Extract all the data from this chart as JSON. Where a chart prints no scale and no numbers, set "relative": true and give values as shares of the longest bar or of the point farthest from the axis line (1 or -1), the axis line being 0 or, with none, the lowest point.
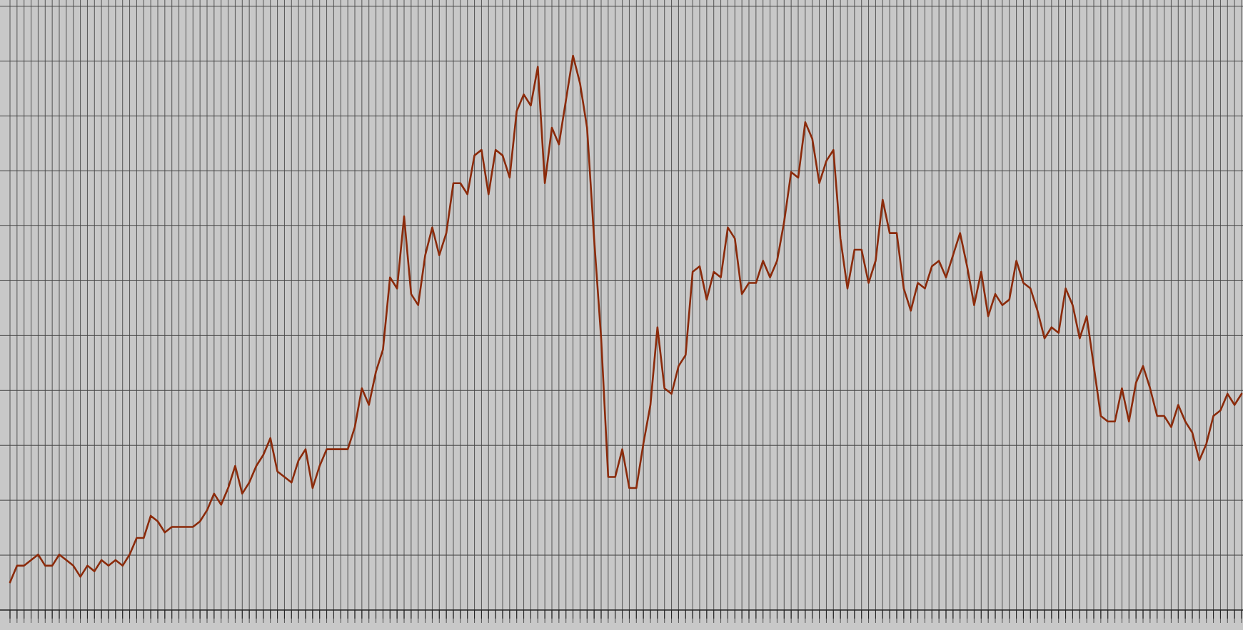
{
  "chart_data": {
    "type": "line",
    "relative": true,
    "grid": true,
    "marker": "none",
    "line_style": "solid",
    "categories": [
      null,
      null,
      null,
      null,
      null,
      null,
      null,
      null,
      null,
      null,
      null,
      null,
      null,
      null,
      null,
      null,
      null,
      null,
      null,
      null,
      null,
      null,
      null,
      null,
      null,
      null,
      null,
      null,
      null,
      null,
      null,
      null,
      null,
      null,
      null,
      null,
      null,
      null,
      null,
      null,
      null,
      null,
      null,
      null,
      null,
      null,
      null,
      null,
      null,
      null,
      null,
      null,
      null,
      null,
      null,
      null,
      null,
      null,
      null,
      null,
      null,
      null,
      null,
      null,
      null,
      null,
      null,
      null,
      null,
      null,
      null,
      null,
      null,
      null,
      null,
      null,
      null,
      null,
      null,
      null,
      null,
      null,
      null,
      null,
      null,
      null,
      null,
      null,
      null,
      null,
      null,
      null,
      null,
      null,
      null,
      null,
      null,
      null,
      null,
      null,
      null,
      null,
      null,
      null,
      null,
      null,
      null,
      null,
      null,
      null,
      null,
      null,
      null,
      null,
      null,
      null,
      null,
      null,
      null,
      null,
      null,
      null,
      null,
      null,
      null,
      null,
      null,
      null,
      null,
      null,
      null,
      null,
      null,
      null,
      null,
      null,
      null,
      null,
      null,
      null,
      null,
      null,
      null,
      null,
      null,
      null,
      null,
      null,
      null,
      null,
      null,
      null,
      null,
      null,
      null,
      null,
      null,
      null,
      null,
      null,
      null,
      null,
      null,
      null,
      null,
      null,
      null,
      null,
      null,
      null,
      null,
      null,
      null,
      null,
      null,
      null
    ],
    "series": [
      {
        "color": "#8b2a0a",
        "values": [
          0.05,
          0.08,
          0.08,
          0.09,
          0.1,
          0.08,
          0.08,
          0.1,
          0.09,
          0.08,
          0.06,
          0.08,
          0.07,
          0.09,
          0.08,
          0.09,
          0.08,
          0.1,
          0.13,
          0.13,
          0.17,
          0.16,
          0.14,
          0.15,
          0.15,
          0.15,
          0.15,
          0.16,
          0.18,
          0.21,
          0.19,
          0.22,
          0.26,
          0.21,
          0.23,
          0.26,
          0.28,
          0.31,
          0.25,
          0.24,
          0.23,
          0.27,
          0.29,
          0.22,
          0.26,
          0.29,
          0.29,
          0.29,
          0.29,
          0.33,
          0.4,
          0.37,
          0.43,
          0.47,
          0.6,
          0.58,
          0.71,
          0.57,
          0.55,
          0.64,
          0.69,
          0.64,
          0.68,
          0.77,
          0.77,
          0.75,
          0.82,
          0.83,
          0.75,
          0.83,
          0.82,
          0.78,
          0.9,
          0.93,
          0.91,
          0.98,
          0.77,
          0.87,
          0.84,
          0.92,
          1,
          0.95,
          0.87,
          0.67,
          0.49,
          0.24,
          0.24,
          0.29,
          0.22,
          0.22,
          0.3,
          0.37,
          0.51,
          0.4,
          0.39,
          0.44,
          0.46,
          0.61,
          0.62,
          0.56,
          0.61,
          0.6,
          0.69,
          0.67,
          0.57,
          0.59,
          0.59,
          0.63,
          0.6,
          0.63,
          0.7,
          0.79,
          0.78,
          0.88,
          0.85,
          0.77,
          0.81,
          0.83,
          0.67,
          0.58,
          0.65,
          0.65,
          0.59,
          0.63,
          0.74,
          0.68,
          0.68,
          0.58,
          0.54,
          0.59,
          0.58,
          0.62,
          0.63,
          0.6,
          0.64,
          0.68,
          0.62,
          0.55,
          0.61,
          0.53,
          0.57,
          0.55,
          0.56,
          0.63,
          0.59,
          0.58,
          0.54,
          0.49,
          0.51,
          0.5,
          0.58,
          0.55,
          0.49,
          0.53,
          0.44,
          0.35,
          0.34,
          0.34,
          0.4,
          0.34,
          0.41,
          0.44,
          0.4,
          0.35,
          0.35,
          0.33,
          0.37,
          0.34,
          0.32,
          0.27,
          0.3,
          0.35,
          0.36,
          0.39,
          0.37,
          0.39
        ]
      }
    ]
  }
}
